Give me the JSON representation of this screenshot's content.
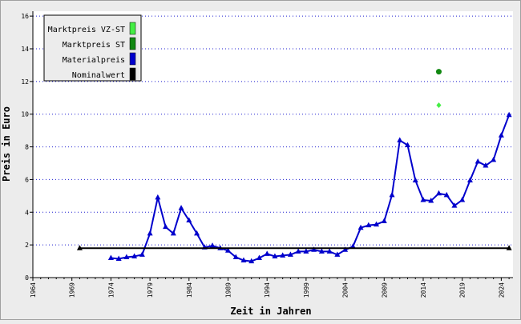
{
  "chart_data": {
    "type": "line",
    "xlabel": "Zeit in Jahren",
    "ylabel": "Preis in Euro",
    "xlim": [
      1964,
      2025.5
    ],
    "ylim": [
      0,
      16.3
    ],
    "x_ticks": [
      1964,
      1969,
      1974,
      1979,
      1984,
      1989,
      1994,
      1999,
      2004,
      2009,
      2014,
      2019,
      2024
    ],
    "y_ticks": [
      0,
      2,
      4,
      6,
      8,
      10,
      12,
      14,
      16
    ],
    "grid": "horizontal-dotted",
    "legend_position": "top-left",
    "legend": [
      {
        "label": "Marktpreis VZ-ST",
        "color": "#44ee44"
      },
      {
        "label": "Marktpreis ST",
        "color": "#118811"
      },
      {
        "label": "Materialpreis",
        "color": "#0000cc"
      },
      {
        "label": "Nominalwert",
        "color": "#000000"
      }
    ],
    "series": [
      {
        "name": "Materialpreis",
        "color": "#0000cc",
        "marker": "triangle",
        "x": [
          1974,
          1975,
          1976,
          1977,
          1978,
          1979,
          1980,
          1981,
          1982,
          1983,
          1984,
          1985,
          1986,
          1987,
          1988,
          1989,
          1990,
          1991,
          1992,
          1993,
          1994,
          1995,
          1996,
          1997,
          1998,
          1999,
          2000,
          2001,
          2002,
          2003,
          2004,
          2005,
          2006,
          2007,
          2008,
          2009,
          2010,
          2011,
          2012,
          2013,
          2014,
          2015,
          2016,
          2017,
          2018,
          2019,
          2020,
          2021,
          2022,
          2023,
          2024,
          2025
        ],
        "y": [
          1.2,
          1.15,
          1.25,
          1.3,
          1.4,
          2.7,
          4.9,
          3.1,
          2.7,
          4.25,
          3.5,
          2.7,
          1.85,
          1.95,
          1.8,
          1.65,
          1.25,
          1.05,
          1.0,
          1.2,
          1.45,
          1.3,
          1.35,
          1.4,
          1.6,
          1.6,
          1.7,
          1.6,
          1.6,
          1.4,
          1.7,
          1.9,
          3.05,
          3.2,
          3.25,
          3.45,
          5.05,
          8.4,
          8.1,
          5.95,
          4.75,
          4.7,
          5.15,
          5.05,
          4.4,
          4.75,
          5.95,
          7.1,
          6.85,
          7.2,
          8.7,
          9.95
        ]
      },
      {
        "name": "Nominalwert",
        "color": "#000000",
        "marker": "triangle",
        "x": [
          1970,
          2025
        ],
        "y": [
          1.8,
          1.8
        ]
      },
      {
        "name": "Marktpreis ST",
        "color": "#118811",
        "marker": "circle",
        "x": [
          2016
        ],
        "y": [
          12.6
        ]
      },
      {
        "name": "Marktpreis VZ-ST",
        "color": "#44ee44",
        "marker": "diamond",
        "x": [
          2016
        ],
        "y": [
          10.55
        ]
      }
    ]
  }
}
